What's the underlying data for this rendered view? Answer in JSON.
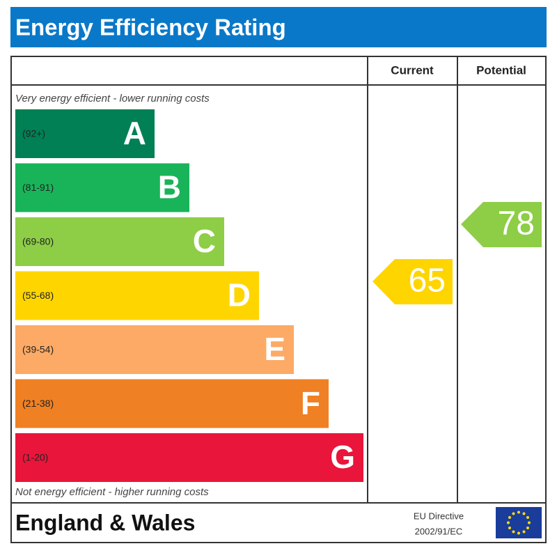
{
  "header": {
    "title": "Energy Efficiency Rating"
  },
  "columns": {
    "current": "Current",
    "potential": "Potential"
  },
  "notes": {
    "top": "Very energy efficient - lower running costs",
    "bottom": "Not energy efficient - higher running costs"
  },
  "bands": [
    {
      "range": "(92+)",
      "letter": "A"
    },
    {
      "range": "(81-91)",
      "letter": "B"
    },
    {
      "range": "(69-80)",
      "letter": "C"
    },
    {
      "range": "(55-68)",
      "letter": "D"
    },
    {
      "range": "(39-54)",
      "letter": "E"
    },
    {
      "range": "(21-38)",
      "letter": "F"
    },
    {
      "range": "(1-20)",
      "letter": "G"
    }
  ],
  "current": {
    "value": 65
  },
  "potential": {
    "value": 78
  },
  "footer": {
    "region": "England & Wales",
    "directive_line1": "EU Directive",
    "directive_line2": "2002/91/EC"
  }
}
